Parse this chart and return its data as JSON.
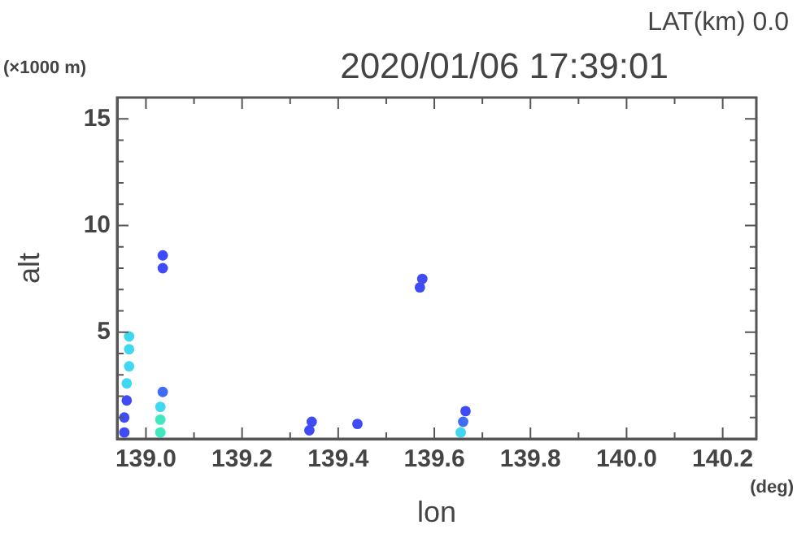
{
  "chart_data": {
    "type": "scatter",
    "title": "2020/01/06 17:39:01",
    "xlabel": "lon",
    "ylabel": "alt",
    "annotations": [
      "LAT(km) 0.0",
      "(×1000 m)",
      "(deg)"
    ],
    "xlim": [
      138.94,
      140.27
    ],
    "ylim": [
      0,
      16
    ],
    "xticks": [
      {
        "value": 139.0,
        "label": "139.0"
      },
      {
        "value": 139.1,
        "label": null
      },
      {
        "value": 139.2,
        "label": "139.2"
      },
      {
        "value": 139.3,
        "label": null
      },
      {
        "value": 139.4,
        "label": "139.4"
      },
      {
        "value": 139.5,
        "label": null
      },
      {
        "value": 139.6,
        "label": "139.6"
      },
      {
        "value": 139.7,
        "label": null
      },
      {
        "value": 139.8,
        "label": "139.8"
      },
      {
        "value": 139.9,
        "label": null
      },
      {
        "value": 140.0,
        "label": "140.0"
      },
      {
        "value": 140.1,
        "label": null
      },
      {
        "value": 140.2,
        "label": "140.2"
      }
    ],
    "yticks": [
      {
        "value": 1,
        "label": null
      },
      {
        "value": 2,
        "label": null
      },
      {
        "value": 3,
        "label": null
      },
      {
        "value": 4,
        "label": null
      },
      5,
      {
        "value": 6,
        "label": null
      },
      {
        "value": 7,
        "label": null
      },
      {
        "value": 8,
        "label": null
      },
      {
        "value": 9,
        "label": null
      },
      10,
      {
        "value": 11,
        "label": null
      },
      {
        "value": 12,
        "label": null
      },
      {
        "value": 13,
        "label": null
      },
      {
        "value": 14,
        "label": null
      },
      15
    ],
    "grid": false,
    "legend": false,
    "marker": "circle",
    "series": [
      {
        "x": [
          138.955,
          138.955,
          138.96,
          138.96,
          138.965,
          138.965,
          138.965,
          139.03,
          139.03,
          139.03,
          139.035,
          139.035,
          139.035,
          139.34,
          139.345,
          139.44,
          139.57,
          139.575,
          139.655,
          139.66,
          139.665
        ],
        "values": [
          0.3,
          1.0,
          1.8,
          2.6,
          3.4,
          4.2,
          4.8,
          0.3,
          0.9,
          1.5,
          2.2,
          8.0,
          8.6,
          0.4,
          0.8,
          0.7,
          7.1,
          7.5,
          0.3,
          0.8,
          1.3
        ],
        "colors": [
          "#3f4cf5",
          "#3f4cf5",
          "#3f4cf5",
          "#40d8f0",
          "#40d8f0",
          "#40d8f0",
          "#40d8f0",
          "#40e8c0",
          "#40e8c0",
          "#40d8f0",
          "#3f6cf5",
          "#3f4cf5",
          "#3f4cf5",
          "#3f4cf5",
          "#3f4cf5",
          "#3f4cf5",
          "#3f4cf5",
          "#3f4cf5",
          "#40d8f0",
          "#3f6cf5",
          "#3f4cf5"
        ]
      }
    ]
  }
}
